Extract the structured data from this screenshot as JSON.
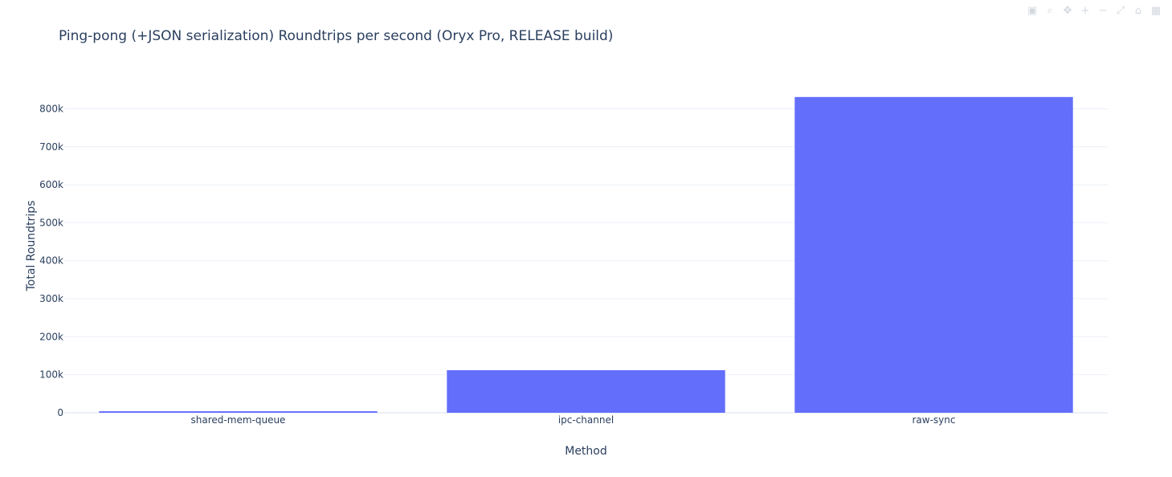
{
  "chart_data": {
    "type": "bar",
    "title": "Ping-pong (+JSON serialization) Roundtrips per second (Oryx Pro, RELEASE build)",
    "xlabel": "Method",
    "ylabel": "Total Roundtrips",
    "categories": [
      "shared-mem-queue",
      "ipc-channel",
      "raw-sync"
    ],
    "values": [
      4000,
      112000,
      831000
    ],
    "ylim": [
      0,
      875000
    ],
    "yticks": [
      0,
      100000,
      200000,
      300000,
      400000,
      500000,
      600000,
      700000,
      800000
    ],
    "ytick_labels": [
      "0",
      "100k",
      "200k",
      "300k",
      "400k",
      "500k",
      "600k",
      "700k",
      "800k"
    ],
    "grid": true,
    "bar_color": "#636efa"
  },
  "modebar": {
    "icons": [
      "camera-icon",
      "zoom-icon",
      "pan-icon",
      "zoom-in-icon",
      "zoom-out-icon",
      "autoscale-icon",
      "reset-axes-icon",
      "plotly-logo-icon"
    ]
  }
}
